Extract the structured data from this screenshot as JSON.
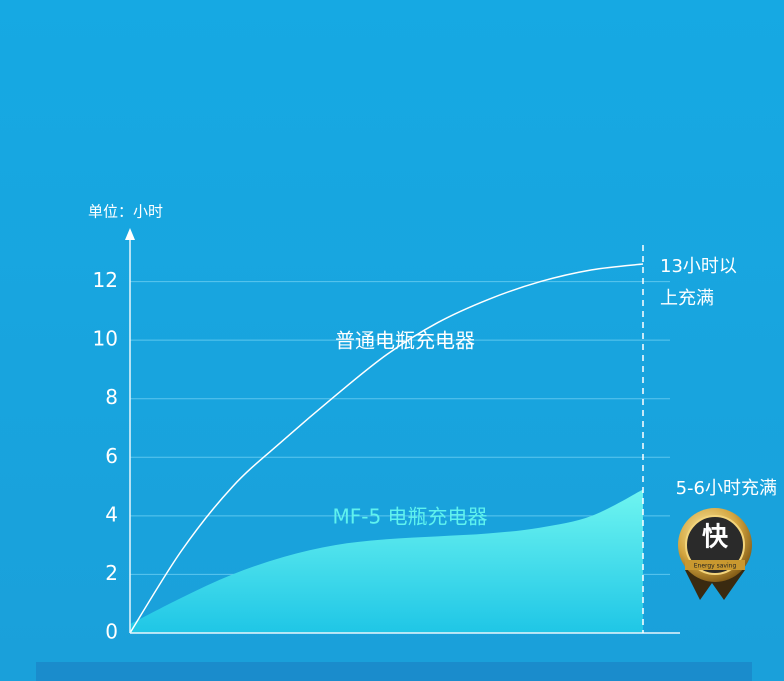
{
  "chart_data": {
    "type": "line",
    "y_label": "单位：小时",
    "categories": [
      null,
      null,
      null,
      null,
      null,
      null,
      null,
      null,
      null,
      null,
      null
    ],
    "series": [
      {
        "name": "普通电瓶充电器",
        "color": "#ffffff",
        "kind": "line",
        "values": [
          0,
          2.8,
          5.0,
          6.6,
          8.1,
          9.5,
          10.6,
          11.4,
          12.0,
          12.4,
          12.6
        ]
      },
      {
        "name": "MF-5 电瓶充电器",
        "color": "#5ff2ee",
        "kind": "area",
        "values": [
          0.3,
          1.2,
          2.0,
          2.6,
          3.0,
          3.2,
          3.3,
          3.4,
          3.6,
          4.0,
          4.9
        ]
      }
    ],
    "annotations": [
      "13小时以",
      "上充满",
      "5-6小时充满"
    ],
    "badge": {
      "text": "快",
      "subtext": "Energy saving"
    },
    "ylim": [
      0,
      14
    ],
    "yticks": [
      0,
      2,
      4,
      6,
      8,
      10,
      12
    ],
    "grid": true
  }
}
